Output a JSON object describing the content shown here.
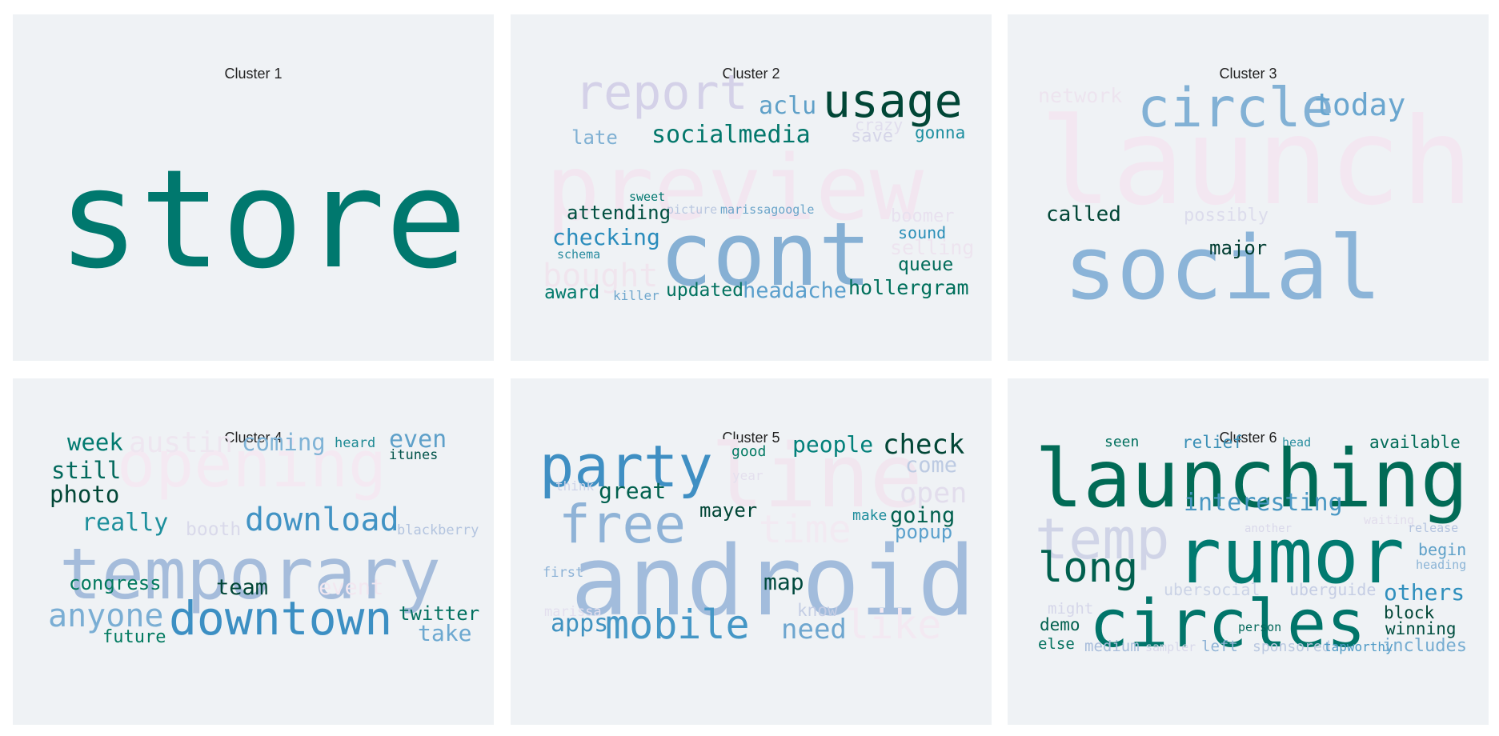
{
  "chart_data": [
    {
      "type": "wordcloud",
      "title": "Cluster 1",
      "words": [
        {
          "text": "store",
          "color": "#00786e"
        }
      ]
    },
    {
      "type": "wordcloud",
      "title": "Cluster 2",
      "words": [
        {
          "text": "preview",
          "color": "#f2e6f0"
        },
        {
          "text": "report",
          "color": "#d4d1e8"
        },
        {
          "text": "usage",
          "color": "#014636"
        },
        {
          "text": "aclu",
          "color": "#5fa0c8"
        },
        {
          "text": "crazy",
          "color": "#e0dded"
        },
        {
          "text": "late",
          "color": "#7fb0d3"
        },
        {
          "text": "socialmedia",
          "color": "#02776b"
        },
        {
          "text": "save",
          "color": "#d5d5e8"
        },
        {
          "text": "gonna",
          "color": "#1d8fa0"
        },
        {
          "text": "sweet",
          "color": "#027870"
        },
        {
          "text": "picture",
          "color": "#b9c7e0"
        },
        {
          "text": "marissagoogle",
          "color": "#6aa4c9"
        },
        {
          "text": "attending",
          "color": "#014f40"
        },
        {
          "text": "boomer",
          "color": "#e8e1ef"
        },
        {
          "text": "cont",
          "color": "#86b0d4"
        },
        {
          "text": "checking",
          "color": "#2a8cbc"
        },
        {
          "text": "sound",
          "color": "#2b8fb8"
        },
        {
          "text": "schema",
          "color": "#2a8ca0"
        },
        {
          "text": "selling",
          "color": "#ede4ef"
        },
        {
          "text": "bought",
          "color": "#f0e5ee"
        },
        {
          "text": "queue",
          "color": "#016c5a"
        },
        {
          "text": "award",
          "color": "#027a6c"
        },
        {
          "text": "killer",
          "color": "#6fa7cd"
        },
        {
          "text": "updated",
          "color": "#02725f"
        },
        {
          "text": "headache",
          "color": "#5a9fcc"
        },
        {
          "text": "hollergram",
          "color": "#01705c"
        }
      ]
    },
    {
      "type": "wordcloud",
      "title": "Cluster 3",
      "words": [
        {
          "text": "launch",
          "color": "#f3e7f1"
        },
        {
          "text": "network",
          "color": "#ede4ef"
        },
        {
          "text": "circle",
          "color": "#82b1d5"
        },
        {
          "text": "today",
          "color": "#6aa6cf"
        },
        {
          "text": "called",
          "color": "#014636"
        },
        {
          "text": "possibly",
          "color": "#dcdcec"
        },
        {
          "text": "social",
          "color": "#8bb4d8"
        },
        {
          "text": "major",
          "color": "#013d32"
        }
      ]
    },
    {
      "type": "wordcloud",
      "title": "Cluster 4",
      "words": [
        {
          "text": "opening",
          "color": "#f4e9f2"
        },
        {
          "text": "austin",
          "color": "#eee6f0"
        },
        {
          "text": "week",
          "color": "#027a70"
        },
        {
          "text": "coming",
          "color": "#7fb3d6"
        },
        {
          "text": "heard",
          "color": "#1e8a94"
        },
        {
          "text": "even",
          "color": "#5ea0c9"
        },
        {
          "text": "itunes",
          "color": "#01534a"
        },
        {
          "text": "still",
          "color": "#02695c"
        },
        {
          "text": "photo",
          "color": "#014636"
        },
        {
          "text": "really",
          "color": "#1d8f9c"
        },
        {
          "text": "booth",
          "color": "#d9d9ea"
        },
        {
          "text": "download",
          "color": "#4193c4"
        },
        {
          "text": "blackberry",
          "color": "#b3c4df"
        },
        {
          "text": "temporary",
          "color": "#a5bcdb"
        },
        {
          "text": "congress",
          "color": "#02795e"
        },
        {
          "text": "team",
          "color": "#014636"
        },
        {
          "text": "event",
          "color": "#f2e7f0"
        },
        {
          "text": "anyone",
          "color": "#7aaed4"
        },
        {
          "text": "twitter",
          "color": "#02705f"
        },
        {
          "text": "downtown",
          "color": "#3c8fc3"
        },
        {
          "text": "future",
          "color": "#027a60"
        },
        {
          "text": "take",
          "color": "#6ca8d0"
        }
      ]
    },
    {
      "type": "wordcloud",
      "title": "Cluster 5",
      "words": [
        {
          "text": "line",
          "color": "#f1e6ef"
        },
        {
          "text": "party",
          "color": "#3f8fc3"
        },
        {
          "text": "good",
          "color": "#027a63"
        },
        {
          "text": "people",
          "color": "#02807a"
        },
        {
          "text": "check",
          "color": "#014636"
        },
        {
          "text": "come",
          "color": "#bccae2"
        },
        {
          "text": "year",
          "color": "#e4e0ee"
        },
        {
          "text": "think",
          "color": "#cdd3e8"
        },
        {
          "text": "great",
          "color": "#01604e"
        },
        {
          "text": "open",
          "color": "#e2ddec"
        },
        {
          "text": "free",
          "color": "#8fb3d7"
        },
        {
          "text": "time",
          "color": "#f2eaf2"
        },
        {
          "text": "mayer",
          "color": "#014636"
        },
        {
          "text": "make",
          "color": "#1e8d9d"
        },
        {
          "text": "going",
          "color": "#01604e"
        },
        {
          "text": "popup",
          "color": "#5aa0cc"
        },
        {
          "text": "first",
          "color": "#8cb2d6"
        },
        {
          "text": "android",
          "color": "#a2bcdc"
        },
        {
          "text": "map",
          "color": "#014a3e"
        },
        {
          "text": "marissa",
          "color": "#e3dfee"
        },
        {
          "text": "know",
          "color": "#c4cde4"
        },
        {
          "text": "apps",
          "color": "#3f92c0"
        },
        {
          "text": "mobile",
          "color": "#4597c6"
        },
        {
          "text": "need",
          "color": "#6ea6cf"
        },
        {
          "text": "like",
          "color": "#f3e9f2"
        }
      ]
    },
    {
      "type": "wordcloud",
      "title": "Cluster 6",
      "words": [
        {
          "text": "seen",
          "color": "#02705e"
        },
        {
          "text": "relief",
          "color": "#3b90b6"
        },
        {
          "text": "head",
          "color": "#2b8fa0"
        },
        {
          "text": "available",
          "color": "#026c58"
        },
        {
          "text": "launching",
          "color": "#016b56"
        },
        {
          "text": "temp",
          "color": "#d0d4e7"
        },
        {
          "text": "interesting",
          "color": "#4a98c3"
        },
        {
          "text": "waiting",
          "color": "#e2ddec"
        },
        {
          "text": "another",
          "color": "#d9d8ea"
        },
        {
          "text": "release",
          "color": "#b3c3df"
        },
        {
          "text": "long",
          "color": "#01604e"
        },
        {
          "text": "rumor",
          "color": "#017a70"
        },
        {
          "text": "begin",
          "color": "#5ea0c8"
        },
        {
          "text": "heading",
          "color": "#8bb4d6"
        },
        {
          "text": "ubersocial",
          "color": "#cbd3e6"
        },
        {
          "text": "uberguide",
          "color": "#c5cde4"
        },
        {
          "text": "others",
          "color": "#2f8fbd"
        },
        {
          "text": "might",
          "color": "#d5d6e9"
        },
        {
          "text": "circles",
          "color": "#01756a"
        },
        {
          "text": "block",
          "color": "#014636"
        },
        {
          "text": "demo",
          "color": "#01604e"
        },
        {
          "text": "person",
          "color": "#02685a"
        },
        {
          "text": "winning",
          "color": "#014f40"
        },
        {
          "text": "else",
          "color": "#02705e"
        },
        {
          "text": "medium",
          "color": "#a8bddb"
        },
        {
          "text": "sampler",
          "color": "#d8d8ea"
        },
        {
          "text": "left",
          "color": "#8fb3d6"
        },
        {
          "text": "sponsored",
          "color": "#bac8e0"
        },
        {
          "text": "tapworthy",
          "color": "#4e9ac6"
        },
        {
          "text": "includes",
          "color": "#75acd1"
        }
      ]
    }
  ]
}
